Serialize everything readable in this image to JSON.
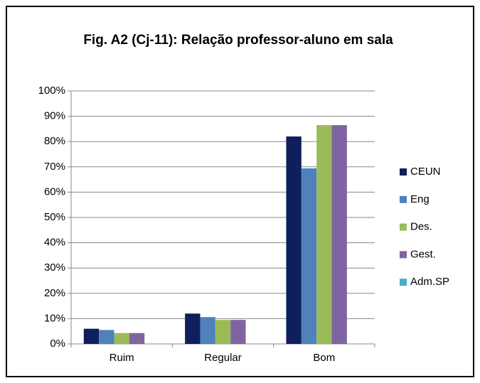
{
  "chart_data": {
    "type": "bar",
    "title": "Fig. A2 (Cj-11): Relação professor-aluno em sala",
    "categories": [
      "Ruim",
      "Regular",
      "Bom"
    ],
    "series": [
      {
        "name": "CEUN",
        "color": "#0e1f5b",
        "values": [
          6,
          12,
          82
        ]
      },
      {
        "name": "Eng",
        "color": "#4f81bd",
        "values": [
          5.5,
          10.6,
          69.4
        ]
      },
      {
        "name": "Des.",
        "color": "#9bbb59",
        "values": [
          4.3,
          9.5,
          86.5
        ]
      },
      {
        "name": "Gest.",
        "color": "#8064a2",
        "values": [
          4.3,
          9.5,
          86.5
        ]
      },
      {
        "name": "Adm.SP",
        "color": "#4bacc6",
        "values": [
          0,
          0,
          0
        ]
      }
    ],
    "ylim": [
      0,
      100
    ],
    "yticks": [
      {
        "value": 0,
        "label": "0%"
      },
      {
        "value": 10,
        "label": "10%"
      },
      {
        "value": 20,
        "label": "20%"
      },
      {
        "value": 30,
        "label": "30%"
      },
      {
        "value": 40,
        "label": "40%"
      },
      {
        "value": 50,
        "label": "50%"
      },
      {
        "value": 60,
        "label": "60%"
      },
      {
        "value": 70,
        "label": "70%"
      },
      {
        "value": 80,
        "label": "80%"
      },
      {
        "value": 90,
        "label": "90%"
      },
      {
        "value": 100,
        "label": "100%"
      }
    ],
    "grid": true,
    "legend": "right"
  }
}
